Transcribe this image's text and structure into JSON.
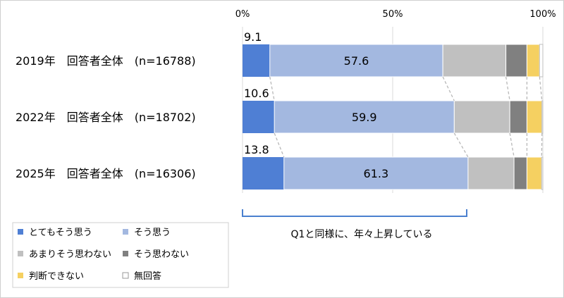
{
  "chart_data": {
    "type": "bar",
    "orientation": "horizontal",
    "stacked": true,
    "axis": {
      "min": 0,
      "max": 100,
      "ticks": [
        0,
        50,
        100
      ],
      "tick_labels": [
        "0%",
        "50%",
        "100%"
      ]
    },
    "categories": [
      "2019年　回答者全体　(n=16788)",
      "2022年　回答者全体　(n=18702)",
      "2025年　回答者全体　(n=16306)"
    ],
    "series": [
      {
        "name": "とてもそう思う",
        "color": "#4f7fd4",
        "values": [
          9.1,
          10.6,
          13.8
        ],
        "labels": [
          "9.1",
          "10.6",
          "13.8"
        ]
      },
      {
        "name": "そう思う",
        "color": "#a3b8e0",
        "values": [
          57.6,
          59.9,
          61.3
        ],
        "labels": [
          "57.6",
          "59.9",
          "61.3"
        ]
      },
      {
        "name": "あまりそう思わない",
        "color": "#c0c0c0",
        "values": [
          21.0,
          18.5,
          15.3
        ]
      },
      {
        "name": "そう思わない",
        "color": "#808080",
        "values": [
          7.0,
          5.7,
          4.3
        ]
      },
      {
        "name": "判断できない",
        "color": "#f5d061",
        "values": [
          4.2,
          5.0,
          4.9
        ]
      },
      {
        "name": "無回答",
        "color": "#ffffff",
        "values": [
          1.1,
          0.3,
          0.4
        ]
      }
    ],
    "annotation": "Q1と同様に、年々上昇している",
    "legend_position": "bottom-left",
    "grid": true
  }
}
